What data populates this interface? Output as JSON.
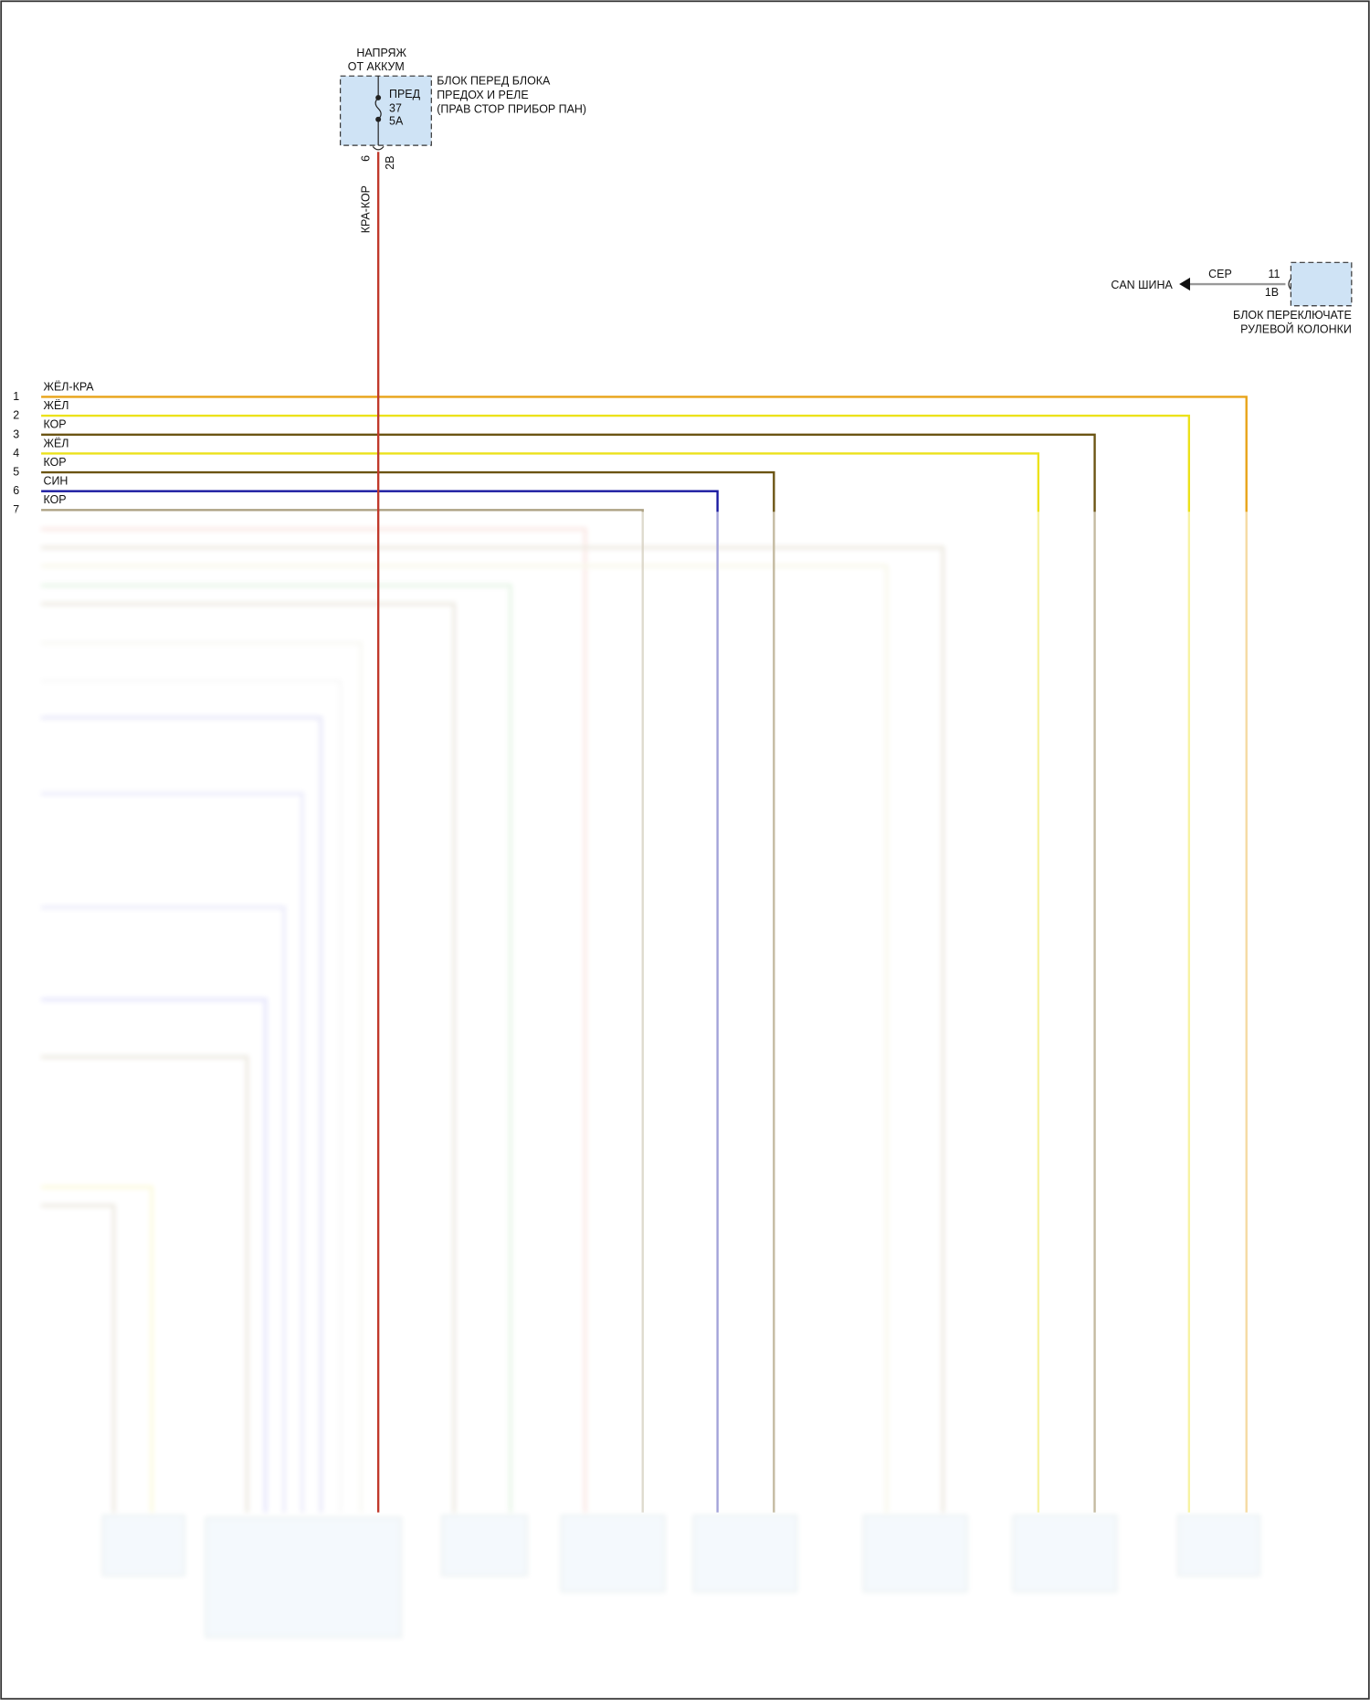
{
  "battery": {
    "lines": [
      "НАПРЯЖ",
      "ОТ АККУМ"
    ]
  },
  "fuse_block": {
    "lines": [
      "БЛОК ПЕРЕД БЛОКА",
      "ПРЕДОХ И РЕЛЕ",
      "(ПРАВ СТОР ПРИБОР ПАН)"
    ],
    "fuse": {
      "name": "ПРЕД",
      "number": "37",
      "rating": "5A"
    },
    "pins": [
      "6",
      "2B"
    ],
    "wire": {
      "label": "КРА-КОР",
      "color": "#c0392b"
    }
  },
  "can": {
    "label": "CAN ШИНА",
    "wire": "СЕР",
    "pins": [
      "11",
      "1B"
    ],
    "block": [
      "БЛОК ПЕРЕКЛЮЧАТЕ",
      "РУЛЕВОЙ КОЛОНКИ"
    ]
  },
  "wires": [
    {
      "pin": "1",
      "label": "ЖЁЛ-КРА",
      "color": "#e8a317"
    },
    {
      "pin": "2",
      "label": "ЖЁЛ",
      "color": "#ece21a"
    },
    {
      "pin": "3",
      "label": "КОР",
      "color": "#6b5413"
    },
    {
      "pin": "4",
      "label": "ЖЁЛ",
      "color": "#ece21a"
    },
    {
      "pin": "5",
      "label": "КОР",
      "color": "#6b5413"
    },
    {
      "pin": "6",
      "label": "СИН",
      "color": "#1a1aa0"
    },
    {
      "pin": "7",
      "label": "КОР",
      "color": "#8a7a50"
    }
  ]
}
